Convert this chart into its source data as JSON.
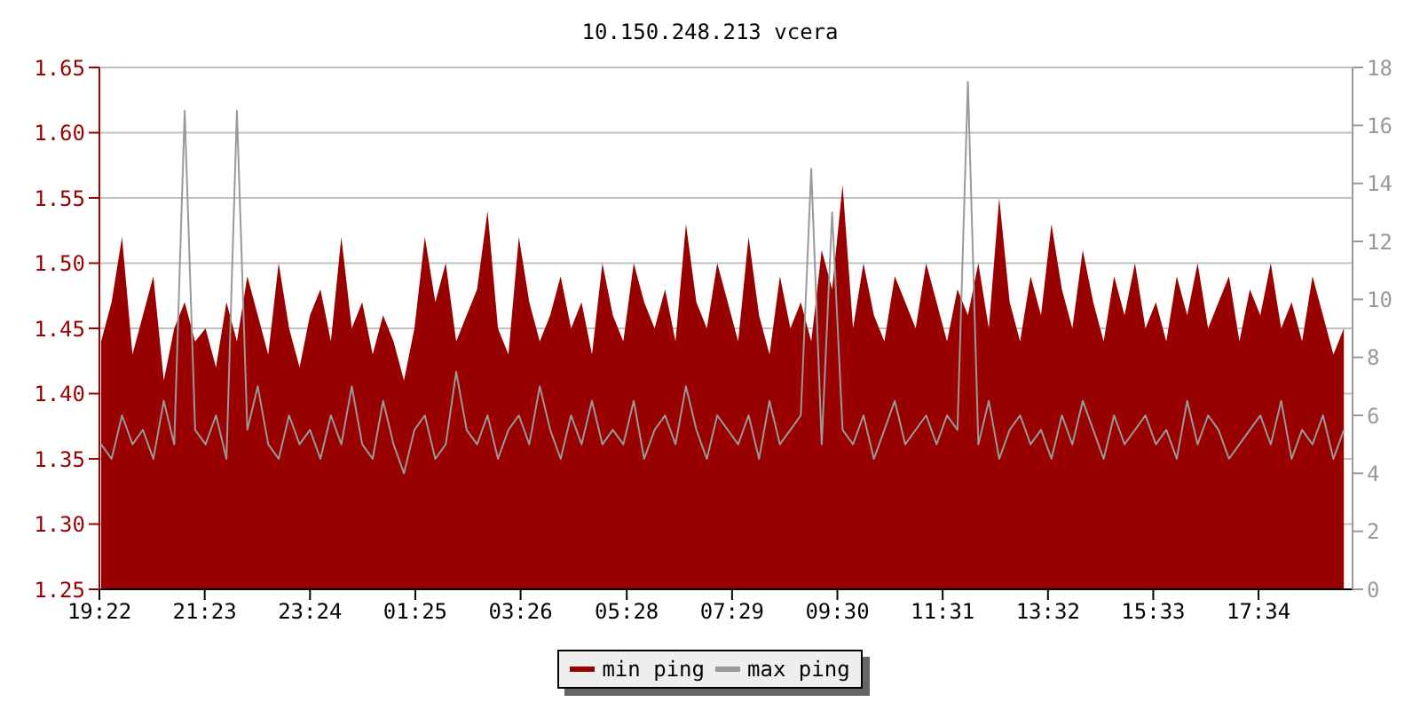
{
  "chart_data": {
    "type": "line",
    "title": "10.150.248.213 vcera",
    "x": [
      "--01-01T19:24",
      "--01-01T19:36",
      "--01-01T19:48",
      "--01-01T20:00",
      "--01-01T20:12",
      "--01-01T20:24",
      "--01-01T20:36",
      "--01-01T20:48",
      "--01-01T21:00",
      "--01-01T21:12",
      "--01-01T21:24",
      "--01-01T21:36",
      "--01-01T21:48",
      "--01-01T22:00",
      "--01-01T22:12",
      "--01-01T22:24",
      "--01-01T22:36",
      "--01-01T22:48",
      "--01-01T23:00",
      "--01-01T23:12",
      "--01-01T23:24",
      "--01-01T23:36",
      "--01-01T23:48",
      "--01-02T00:00",
      "--01-02T00:12",
      "--01-02T00:24",
      "--01-02T00:36",
      "--01-02T00:48",
      "--01-02T01:00",
      "--01-02T01:12",
      "--01-02T01:24",
      "--01-02T01:36",
      "--01-02T01:48",
      "--01-02T02:00",
      "--01-02T02:12",
      "--01-02T02:24",
      "--01-02T02:36",
      "--01-02T02:48",
      "--01-02T03:00",
      "--01-02T03:12",
      "--01-02T03:24",
      "--01-02T03:36",
      "--01-02T03:48",
      "--01-02T04:00",
      "--01-02T04:12",
      "--01-02T04:24",
      "--01-02T04:36",
      "--01-02T04:48",
      "--01-02T05:00",
      "--01-02T05:12",
      "--01-02T05:24",
      "--01-02T05:36",
      "--01-02T05:48",
      "--01-02T06:00",
      "--01-02T06:12",
      "--01-02T06:24",
      "--01-02T06:36",
      "--01-02T06:48",
      "--01-02T07:00",
      "--01-02T07:12",
      "--01-02T07:24",
      "--01-02T07:36",
      "--01-02T07:48",
      "--01-02T08:00",
      "--01-02T08:12",
      "--01-02T08:24",
      "--01-02T08:36",
      "--01-02T08:48",
      "--01-02T09:00",
      "--01-02T09:12",
      "--01-02T09:24",
      "--01-02T09:36",
      "--01-02T09:48",
      "--01-02T10:00",
      "--01-02T10:12",
      "--01-02T10:24",
      "--01-02T10:36",
      "--01-02T10:48",
      "--01-02T11:00",
      "--01-02T11:12",
      "--01-02T11:24",
      "--01-02T11:36",
      "--01-02T11:48",
      "--01-02T12:00",
      "--01-02T12:12",
      "--01-02T12:24",
      "--01-02T12:36",
      "--01-02T12:48",
      "--01-02T13:00",
      "--01-02T13:12",
      "--01-02T13:24",
      "--01-02T13:36",
      "--01-02T13:48",
      "--01-02T14:00",
      "--01-02T14:12",
      "--01-02T14:24",
      "--01-02T14:36",
      "--01-02T14:48",
      "--01-02T15:00",
      "--01-02T15:12",
      "--01-02T15:24",
      "--01-02T15:36",
      "--01-02T15:48",
      "--01-02T16:00",
      "--01-02T16:12",
      "--01-02T16:24",
      "--01-02T16:36",
      "--01-02T16:48",
      "--01-02T17:00",
      "--01-02T17:12",
      "--01-02T17:24",
      "--01-02T17:36",
      "--01-02T17:48",
      "--01-02T18:00",
      "--01-02T18:12",
      "--01-02T18:24",
      "--01-02T18:36",
      "--01-02T18:48",
      "--01-02T19:00",
      "--01-02T19:12"
    ],
    "xlim": [
      "--01-01T19:22",
      "--01-02T19:22"
    ],
    "xticks": [
      {
        "value": "--01-01T19:22",
        "label": "19:22"
      },
      {
        "value": "--01-01T21:23",
        "label": "21:23"
      },
      {
        "value": "--01-01T23:24",
        "label": "23:24"
      },
      {
        "value": "--01-02T01:25",
        "label": "01:25"
      },
      {
        "value": "--01-02T03:26",
        "label": "03:26"
      },
      {
        "value": "--01-02T05:28",
        "label": "05:28"
      },
      {
        "value": "--01-02T07:29",
        "label": "07:29"
      },
      {
        "value": "--01-02T09:30",
        "label": "09:30"
      },
      {
        "value": "--01-02T11:31",
        "label": "11:31"
      },
      {
        "value": "--01-02T13:32",
        "label": "13:32"
      },
      {
        "value": "--01-02T15:33",
        "label": "15:33"
      },
      {
        "value": "--01-02T17:34",
        "label": "17:34"
      }
    ],
    "ylim": [
      1.25,
      1.65
    ],
    "yticks": [
      1.25,
      {
        "value": 1.3,
        "label": "1.30"
      },
      1.35,
      {
        "value": 1.4,
        "label": "1.40"
      },
      1.45,
      {
        "value": 1.5,
        "label": "1.50"
      },
      1.55,
      {
        "value": 1.6,
        "label": "1.60"
      },
      1.65
    ],
    "y2lim": [
      0,
      18
    ],
    "y2ticks": [
      0,
      2,
      4,
      6,
      8,
      10,
      12,
      14,
      16,
      18
    ],
    "grid": "y",
    "legend": "bottom",
    "series": [
      {
        "name": "min ping",
        "type": "area",
        "color": "#990000",
        "values": [
          1.44,
          1.47,
          1.52,
          1.43,
          1.46,
          1.49,
          1.41,
          1.45,
          1.47,
          1.44,
          1.45,
          1.42,
          1.47,
          1.44,
          1.49,
          1.46,
          1.43,
          1.5,
          1.45,
          1.42,
          1.46,
          1.48,
          1.44,
          1.52,
          1.45,
          1.47,
          1.43,
          1.46,
          1.44,
          1.41,
          1.45,
          1.52,
          1.47,
          1.5,
          1.44,
          1.46,
          1.48,
          1.54,
          1.45,
          1.43,
          1.52,
          1.47,
          1.44,
          1.46,
          1.49,
          1.45,
          1.47,
          1.43,
          1.5,
          1.46,
          1.44,
          1.5,
          1.47,
          1.45,
          1.48,
          1.44,
          1.53,
          1.47,
          1.45,
          1.5,
          1.47,
          1.44,
          1.52,
          1.46,
          1.43,
          1.49,
          1.45,
          1.47,
          1.44,
          1.51,
          1.48,
          1.56,
          1.45,
          1.5,
          1.46,
          1.44,
          1.49,
          1.47,
          1.45,
          1.5,
          1.47,
          1.44,
          1.48,
          1.46,
          1.5,
          1.45,
          1.55,
          1.47,
          1.44,
          1.49,
          1.46,
          1.53,
          1.48,
          1.45,
          1.51,
          1.47,
          1.44,
          1.49,
          1.46,
          1.5,
          1.45,
          1.47,
          1.44,
          1.49,
          1.46,
          1.5,
          1.45,
          1.47,
          1.49,
          1.44,
          1.48,
          1.46,
          1.5,
          1.45,
          1.47,
          1.44,
          1.49,
          1.46,
          1.43,
          1.45
        ]
      },
      {
        "name": "max ping",
        "axis": "y2",
        "color": "#999999",
        "values": [
          5,
          4.5,
          6,
          5,
          5.5,
          4.5,
          6.5,
          5,
          16.5,
          5.5,
          5,
          6,
          4.5,
          16.5,
          5.5,
          7,
          5,
          4.5,
          6,
          5,
          5.5,
          4.5,
          6,
          5,
          7,
          5,
          4.5,
          6.5,
          5,
          4,
          5.5,
          6,
          4.5,
          5,
          7.5,
          5.5,
          5,
          6,
          4.5,
          5.5,
          6,
          5,
          7,
          5.5,
          4.5,
          6,
          5,
          6.5,
          5,
          5.5,
          5,
          6.5,
          4.5,
          5.5,
          6,
          5,
          7,
          5.5,
          4.5,
          6,
          5.5,
          5,
          6,
          4.5,
          6.5,
          5,
          5.5,
          6,
          14.5,
          5,
          13,
          5.5,
          5,
          6,
          4.5,
          5.5,
          6.5,
          5,
          5.5,
          6,
          5,
          6,
          5.5,
          17.5,
          5,
          6.5,
          4.5,
          5.5,
          6,
          5,
          5.5,
          4.5,
          6,
          5,
          6.5,
          5.5,
          4.5,
          6,
          5,
          5.5,
          6,
          5,
          5.5,
          4.5,
          6.5,
          5,
          6,
          5.5,
          4.5,
          5,
          5.5,
          6,
          5,
          6.5,
          4.5,
          5.5,
          5,
          6,
          4.5,
          5.5
        ]
      }
    ]
  }
}
